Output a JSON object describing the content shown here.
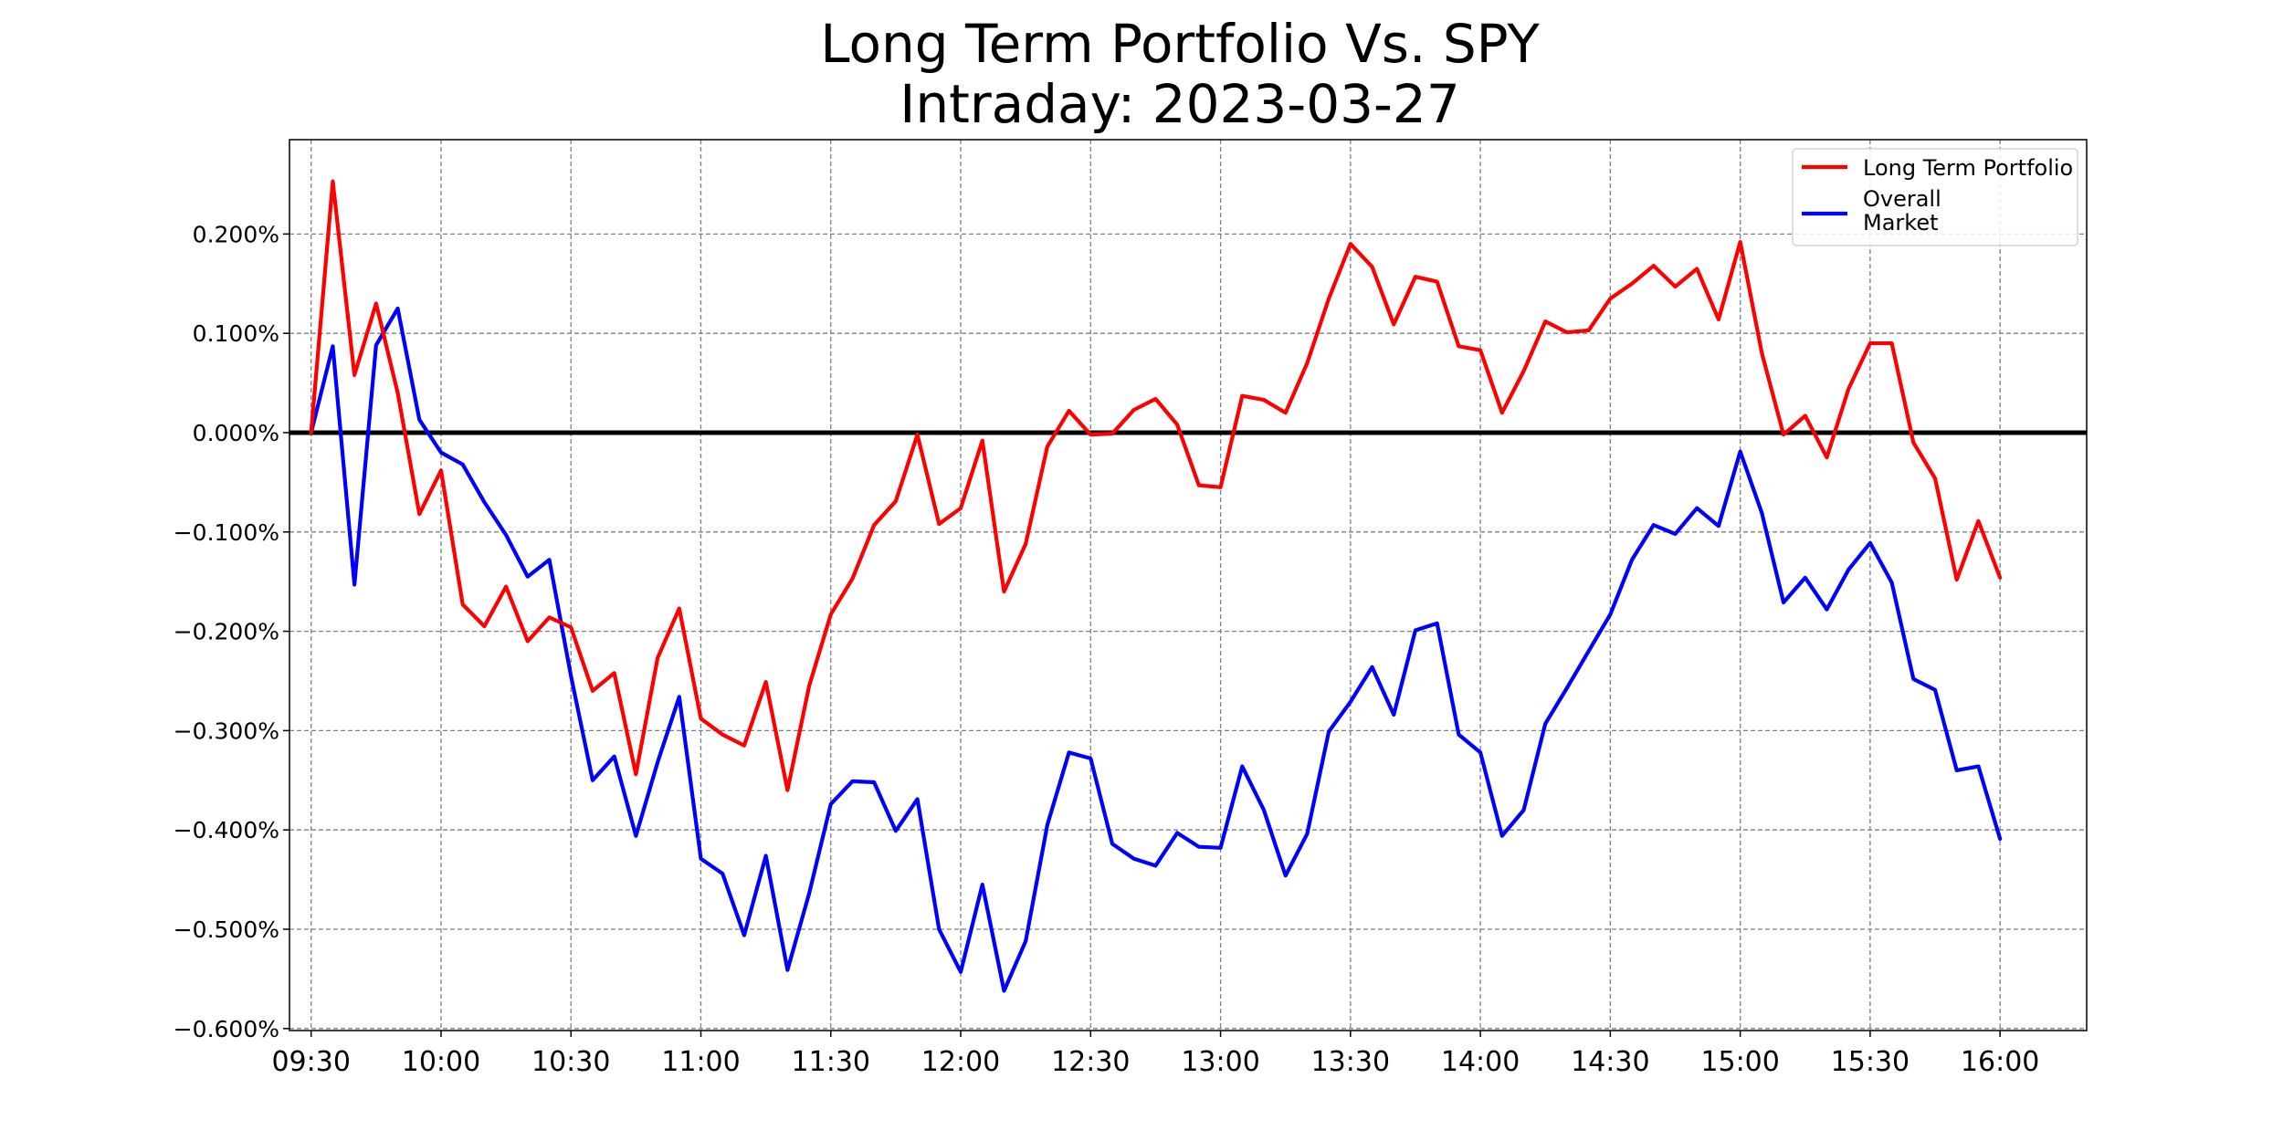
{
  "chart_data": {
    "type": "line",
    "title": "Long Term Portfolio Vs. SPY",
    "subtitle": "Intraday: 2023-03-27",
    "xlabel": "",
    "ylabel": "",
    "x": [
      "09:30",
      "09:35",
      "09:40",
      "09:45",
      "09:50",
      "09:55",
      "10:00",
      "10:05",
      "10:10",
      "10:15",
      "10:20",
      "10:25",
      "10:30",
      "10:35",
      "10:40",
      "10:45",
      "10:50",
      "10:55",
      "11:00",
      "11:05",
      "11:10",
      "11:15",
      "11:20",
      "11:25",
      "11:30",
      "11:35",
      "11:40",
      "11:45",
      "11:50",
      "11:55",
      "12:00",
      "12:05",
      "12:10",
      "12:15",
      "12:20",
      "12:25",
      "12:30",
      "12:35",
      "12:40",
      "12:45",
      "12:50",
      "12:55",
      "13:00",
      "13:05",
      "13:10",
      "13:15",
      "13:20",
      "13:25",
      "13:30",
      "13:35",
      "13:40",
      "13:45",
      "13:50",
      "13:55",
      "14:00",
      "14:05",
      "14:10",
      "14:15",
      "14:20",
      "14:25",
      "14:30",
      "14:35",
      "14:40",
      "14:45",
      "14:50",
      "14:55",
      "15:00",
      "15:05",
      "15:10",
      "15:15",
      "15:20",
      "15:25",
      "15:30",
      "15:35",
      "15:40",
      "15:45",
      "15:50",
      "15:55",
      "16:00"
    ],
    "x_ticks": [
      "09:30",
      "10:00",
      "10:30",
      "11:00",
      "11:30",
      "12:00",
      "12:30",
      "13:00",
      "13:30",
      "14:00",
      "14:30",
      "15:00",
      "15:30",
      "16:00"
    ],
    "y_tick_values": [
      0.2,
      0.1,
      0.0,
      -0.1,
      -0.2,
      -0.3,
      -0.4,
      -0.5,
      -0.6
    ],
    "y_tick_labels": [
      "0.200%",
      "0.100%",
      "0.000%",
      "−0.100%",
      "−0.200%",
      "−0.300%",
      "−0.400%",
      "−0.500%",
      "−0.600%"
    ],
    "ylim": [
      -0.602,
      0.295
    ],
    "xlim": [
      -1.0,
      82.0
    ],
    "grid": true,
    "zero_line": true,
    "legend_position": "top-right",
    "series": [
      {
        "name": "Long Term Portfolio",
        "color": "#ff0000",
        "values": [
          0.0,
          0.253,
          0.058,
          0.13,
          0.04,
          -0.082,
          -0.038,
          -0.173,
          -0.195,
          -0.155,
          -0.21,
          -0.186,
          -0.196,
          -0.26,
          -0.242,
          -0.344,
          -0.227,
          -0.177,
          -0.288,
          -0.304,
          -0.315,
          -0.251,
          -0.36,
          -0.255,
          -0.183,
          -0.147,
          -0.093,
          -0.069,
          -0.002,
          -0.092,
          -0.076,
          -0.008,
          -0.16,
          -0.112,
          -0.014,
          0.022,
          -0.002,
          -0.001,
          0.023,
          0.034,
          0.008,
          -0.053,
          -0.055,
          0.037,
          0.033,
          0.02,
          0.07,
          0.135,
          0.19,
          0.167,
          0.109,
          0.157,
          0.152,
          0.087,
          0.083,
          0.02,
          0.062,
          0.112,
          0.101,
          0.103,
          0.135,
          0.15,
          0.168,
          0.147,
          0.165,
          0.114,
          0.192,
          0.08,
          -0.002,
          0.017,
          -0.025,
          0.044,
          0.09,
          0.09,
          -0.01,
          -0.046,
          -0.148,
          -0.089,
          -0.146
        ]
      },
      {
        "name": "Overall\nMarket",
        "color": "#0000ff",
        "values": [
          0.0,
          0.087,
          -0.153,
          0.088,
          0.125,
          0.013,
          -0.02,
          -0.032,
          -0.07,
          -0.103,
          -0.145,
          -0.128,
          -0.245,
          -0.35,
          -0.326,
          -0.406,
          -0.332,
          -0.266,
          -0.429,
          -0.444,
          -0.506,
          -0.426,
          -0.541,
          -0.464,
          -0.374,
          -0.351,
          -0.352,
          -0.401,
          -0.369,
          -0.5,
          -0.543,
          -0.455,
          -0.562,
          -0.512,
          -0.395,
          -0.322,
          -0.328,
          -0.414,
          -0.429,
          -0.436,
          -0.403,
          -0.417,
          -0.418,
          -0.336,
          -0.38,
          -0.446,
          -0.404,
          -0.301,
          -0.271,
          -0.236,
          -0.284,
          -0.199,
          -0.192,
          -0.304,
          -0.322,
          -0.406,
          -0.38,
          -0.293,
          -0.257,
          -0.22,
          -0.183,
          -0.128,
          -0.093,
          -0.102,
          -0.076,
          -0.094,
          -0.019,
          -0.081,
          -0.171,
          -0.146,
          -0.178,
          -0.138,
          -0.111,
          -0.151,
          -0.248,
          -0.259,
          -0.34,
          -0.336,
          -0.409
        ]
      }
    ]
  }
}
